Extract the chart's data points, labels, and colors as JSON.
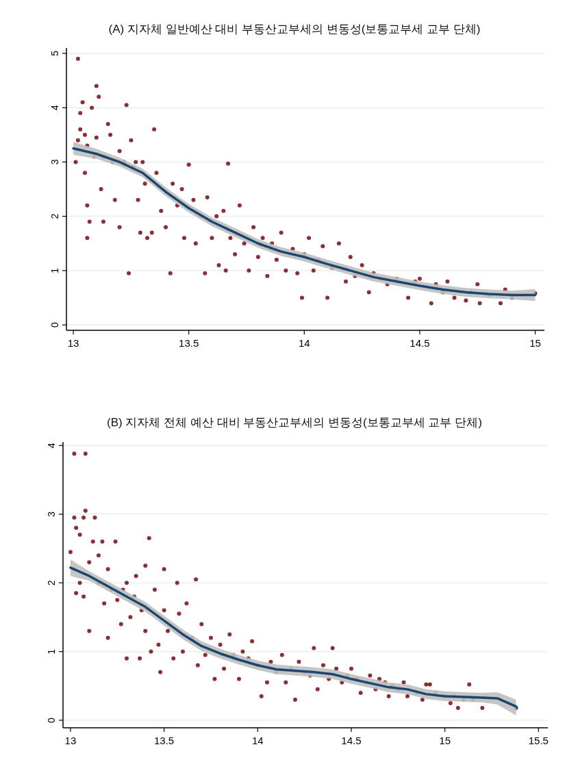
{
  "chart_data": [
    {
      "type": "scatter",
      "title": "(A) 지자체 일반예산 대비 부동산교부세의 변동성(보통교부세 교부 단체)",
      "xlim": [
        12.97,
        15.04
      ],
      "ylim": [
        -0.1,
        5.1
      ],
      "xticks": [
        13,
        13.5,
        14,
        14.5,
        15
      ],
      "yticks": [
        0,
        1,
        2,
        3,
        4,
        5
      ],
      "grid": "y",
      "series": [
        {
          "marker": "circle",
          "color": "#8b2e35",
          "x": [
            13.01,
            13.02,
            13.02,
            13.03,
            13.03,
            13.04,
            13.05,
            13.06,
            13.05,
            13.06,
            13.06,
            13.07,
            13.08,
            13.09,
            13.1,
            13.1,
            13.11,
            13.12,
            13.13,
            13.13,
            13.15,
            13.16,
            13.17,
            13.18,
            13.2,
            13.2,
            13.22,
            13.23,
            13.24,
            13.25,
            13.26,
            13.27,
            13.28,
            13.29,
            13.3,
            13.31,
            13.32,
            13.34,
            13.35,
            13.36,
            13.38,
            13.4,
            13.42,
            13.43,
            13.45,
            13.47,
            13.48,
            13.5,
            13.52,
            13.53,
            13.55,
            13.57,
            13.58,
            13.6,
            13.62,
            13.63,
            13.65,
            13.66,
            13.67,
            13.68,
            13.7,
            13.72,
            13.74,
            13.76,
            13.78,
            13.8,
            13.82,
            13.84,
            13.86,
            13.88,
            13.9,
            13.92,
            13.95,
            13.97,
            13.99,
            14.0,
            14.02,
            14.04,
            14.06,
            14.08,
            14.1,
            14.12,
            14.15,
            14.18,
            14.2,
            14.22,
            14.25,
            14.28,
            14.3,
            14.33,
            14.36,
            14.4,
            14.45,
            14.48,
            14.5,
            14.55,
            14.57,
            14.6,
            14.62,
            14.65,
            14.7,
            14.72,
            14.75,
            14.76,
            14.8,
            14.85,
            14.87,
            14.9,
            15.0
          ],
          "values": [
            3.0,
            4.9,
            3.4,
            3.6,
            3.9,
            4.1,
            3.5,
            3.3,
            2.8,
            2.2,
            1.6,
            1.9,
            4.0,
            3.1,
            3.45,
            4.4,
            4.2,
            2.5,
            3.1,
            1.9,
            3.7,
            3.5,
            3.0,
            2.3,
            1.8,
            3.2,
            3.0,
            4.05,
            0.95,
            3.4,
            2.9,
            3.0,
            2.3,
            1.7,
            3.0,
            2.6,
            1.6,
            1.7,
            3.6,
            2.8,
            2.1,
            1.8,
            0.95,
            2.6,
            2.2,
            2.5,
            1.6,
            2.95,
            2.3,
            1.5,
            2.0,
            0.95,
            2.35,
            1.6,
            2.0,
            1.1,
            2.1,
            1.0,
            2.97,
            1.6,
            1.3,
            2.2,
            1.5,
            1.0,
            1.8,
            1.25,
            1.6,
            0.9,
            1.5,
            1.2,
            1.7,
            1.0,
            1.4,
            0.95,
            0.5,
            1.3,
            1.6,
            1.0,
            1.2,
            1.45,
            0.5,
            1.05,
            1.5,
            0.8,
            1.25,
            0.9,
            1.1,
            0.6,
            0.95,
            0.85,
            0.75,
            0.85,
            0.5,
            0.8,
            0.85,
            0.4,
            0.75,
            0.6,
            0.8,
            0.5,
            0.45,
            0.6,
            0.75,
            0.4,
            0.55,
            0.4,
            0.65,
            0.5,
            0.58
          ]
        },
        {
          "type": "line",
          "color": "#1a476f",
          "x": [
            13.0,
            13.1,
            13.2,
            13.3,
            13.4,
            13.5,
            13.6,
            13.7,
            13.8,
            13.9,
            14.0,
            14.1,
            14.2,
            14.3,
            14.4,
            14.5,
            14.6,
            14.7,
            14.8,
            14.9,
            15.0
          ],
          "values": [
            3.25,
            3.15,
            3.0,
            2.8,
            2.45,
            2.15,
            1.9,
            1.7,
            1.5,
            1.35,
            1.25,
            1.12,
            1.0,
            0.88,
            0.8,
            0.72,
            0.65,
            0.6,
            0.57,
            0.55,
            0.55
          ],
          "lower": [
            3.13,
            3.06,
            2.92,
            2.72,
            2.37,
            2.07,
            1.82,
            1.62,
            1.42,
            1.27,
            1.17,
            1.04,
            0.92,
            0.8,
            0.72,
            0.64,
            0.57,
            0.52,
            0.49,
            0.47,
            0.44
          ],
          "upper": [
            3.37,
            3.24,
            3.08,
            2.88,
            2.53,
            2.23,
            1.98,
            1.78,
            1.58,
            1.43,
            1.33,
            1.2,
            1.08,
            0.96,
            0.88,
            0.8,
            0.73,
            0.68,
            0.65,
            0.63,
            0.66
          ]
        }
      ]
    },
    {
      "type": "scatter",
      "title": "(B) 지자체 전체 예산 대비 부동산교부세의 변동성(보통교부세 교부 단체)",
      "xlim": [
        12.96,
        15.55
      ],
      "ylim": [
        -0.11,
        4.05
      ],
      "xticks": [
        13,
        13.5,
        14,
        14.5,
        15,
        15.5
      ],
      "yticks": [
        0,
        1,
        2,
        3,
        4
      ],
      "grid": "y",
      "series": [
        {
          "marker": "circle",
          "color": "#8b2e35",
          "x": [
            13.02,
            13.08,
            13.02,
            13.03,
            13.05,
            13.07,
            13.08,
            13.0,
            13.02,
            13.03,
            13.05,
            13.07,
            13.1,
            13.1,
            13.12,
            13.13,
            13.15,
            13.15,
            13.17,
            13.18,
            13.2,
            13.2,
            13.22,
            13.24,
            13.25,
            13.27,
            13.28,
            13.3,
            13.3,
            13.32,
            13.34,
            13.35,
            13.37,
            13.38,
            13.4,
            13.4,
            13.42,
            13.43,
            13.45,
            13.47,
            13.48,
            13.5,
            13.5,
            13.52,
            13.55,
            13.57,
            13.58,
            13.6,
            13.62,
            13.65,
            13.67,
            13.68,
            13.7,
            13.72,
            13.75,
            13.77,
            13.8,
            13.82,
            13.85,
            13.87,
            13.9,
            13.92,
            13.95,
            13.97,
            14.0,
            14.02,
            14.05,
            14.07,
            14.1,
            14.13,
            14.15,
            14.18,
            14.2,
            14.22,
            14.25,
            14.28,
            14.3,
            14.32,
            14.35,
            14.38,
            14.4,
            14.42,
            14.45,
            14.48,
            14.5,
            14.53,
            14.55,
            14.58,
            14.6,
            14.63,
            14.65,
            14.68,
            14.7,
            14.72,
            14.75,
            14.78,
            14.8,
            14.85,
            14.88,
            14.9,
            14.92,
            14.95,
            15.0,
            15.03,
            15.05,
            15.07,
            15.1,
            15.13,
            15.15,
            15.2,
            15.38
          ],
          "values": [
            3.88,
            3.88,
            2.95,
            2.8,
            2.7,
            2.95,
            3.05,
            2.45,
            2.2,
            1.85,
            2.0,
            1.8,
            2.3,
            1.3,
            2.6,
            2.95,
            2.0,
            2.4,
            2.6,
            1.7,
            2.2,
            1.2,
            1.9,
            2.6,
            1.75,
            1.4,
            1.9,
            2.0,
            0.9,
            1.5,
            1.8,
            2.1,
            0.9,
            1.6,
            2.25,
            1.3,
            2.65,
            1.0,
            1.9,
            1.1,
            0.7,
            1.6,
            2.2,
            1.3,
            0.9,
            2.0,
            1.55,
            1.0,
            1.7,
            1.2,
            2.05,
            0.8,
            1.4,
            0.95,
            1.2,
            0.6,
            1.1,
            0.75,
            1.25,
            0.95,
            0.6,
            1.0,
            0.9,
            1.15,
            0.8,
            0.35,
            0.55,
            0.85,
            0.7,
            0.95,
            0.55,
            0.75,
            0.3,
            0.85,
            0.7,
            0.65,
            1.05,
            0.45,
            0.8,
            0.6,
            1.05,
            0.75,
            0.55,
            0.65,
            0.75,
            0.6,
            0.4,
            0.55,
            0.65,
            0.45,
            0.6,
            0.55,
            0.35,
            0.5,
            0.45,
            0.55,
            0.35,
            0.4,
            0.3,
            0.52,
            0.52,
            0.4,
            0.35,
            0.25,
            0.35,
            0.18,
            0.3,
            0.52,
            0.3,
            0.18,
            0.18
          ]
        },
        {
          "type": "line",
          "color": "#1a476f",
          "x": [
            13.0,
            13.1,
            13.2,
            13.3,
            13.4,
            13.5,
            13.6,
            13.7,
            13.8,
            13.9,
            14.0,
            14.1,
            14.2,
            14.3,
            14.4,
            14.5,
            14.6,
            14.7,
            14.8,
            14.9,
            15.0,
            15.1,
            15.2,
            15.28,
            15.38
          ],
          "values": [
            2.22,
            2.1,
            1.95,
            1.8,
            1.65,
            1.45,
            1.25,
            1.08,
            0.97,
            0.88,
            0.8,
            0.74,
            0.72,
            0.7,
            0.67,
            0.6,
            0.54,
            0.48,
            0.45,
            0.38,
            0.35,
            0.34,
            0.33,
            0.32,
            0.2
          ],
          "lower": [
            2.1,
            2.03,
            1.88,
            1.73,
            1.58,
            1.38,
            1.18,
            1.01,
            0.9,
            0.81,
            0.73,
            0.67,
            0.65,
            0.63,
            0.6,
            0.53,
            0.47,
            0.41,
            0.38,
            0.31,
            0.28,
            0.27,
            0.26,
            0.23,
            0.07
          ],
          "upper": [
            2.34,
            2.17,
            2.02,
            1.87,
            1.72,
            1.52,
            1.32,
            1.15,
            1.04,
            0.95,
            0.87,
            0.81,
            0.79,
            0.77,
            0.74,
            0.67,
            0.61,
            0.55,
            0.52,
            0.45,
            0.42,
            0.41,
            0.4,
            0.41,
            0.3
          ]
        }
      ]
    }
  ]
}
